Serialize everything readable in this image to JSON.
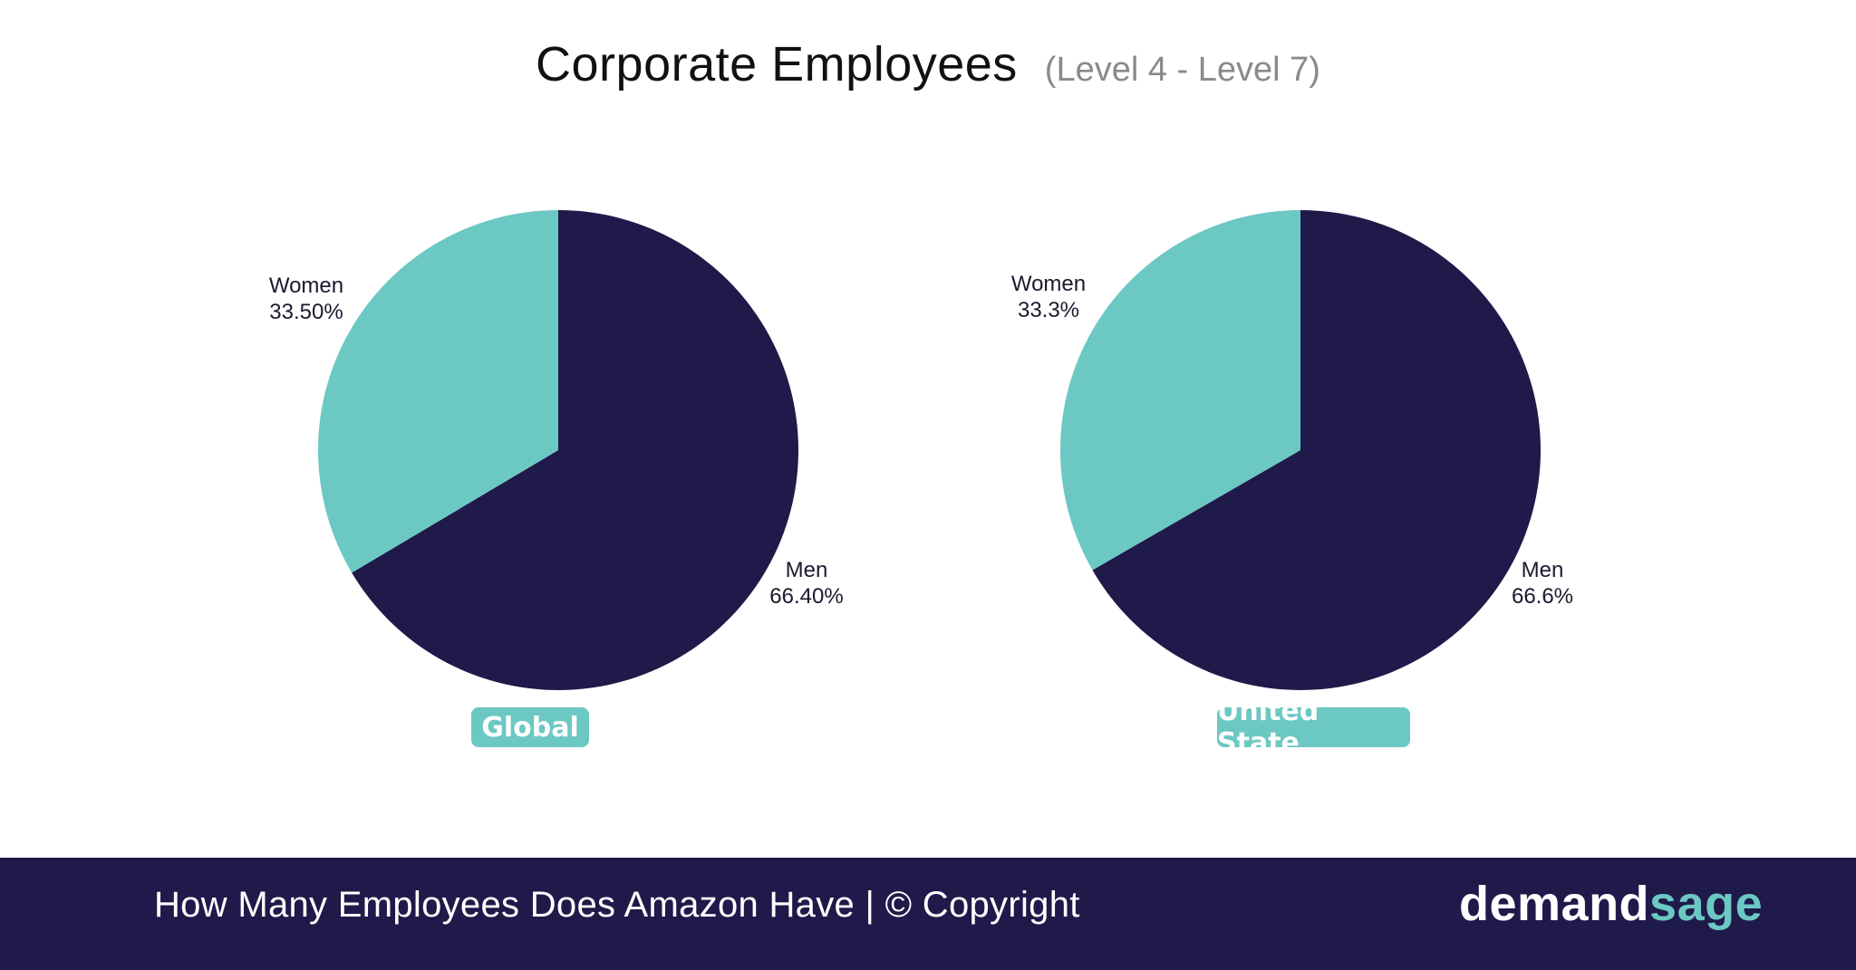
{
  "header": {
    "title": "Corporate Employees",
    "subtitle": "(Level 4 - Level 7)"
  },
  "chart_data": [
    {
      "type": "pie",
      "label": "Global",
      "slices": [
        {
          "name": "Women",
          "value": 33.5,
          "display": "33.50%"
        },
        {
          "name": "Men",
          "value": 66.4,
          "display": "66.40%"
        }
      ]
    },
    {
      "type": "pie",
      "label": "United State",
      "slices": [
        {
          "name": "Women",
          "value": 33.3,
          "display": "33.3%"
        },
        {
          "name": "Men",
          "value": 66.6,
          "display": "66.6%"
        }
      ]
    }
  ],
  "colors": {
    "women": "#6cc8c3",
    "men": "#1f1a4a",
    "badge": "#6cc8c3",
    "footer_bg": "#1f1a4a"
  },
  "footer": {
    "text": "How Many Employees Does Amazon Have | © Copyright",
    "brand_part1": "demand",
    "brand_part2": "sage"
  }
}
